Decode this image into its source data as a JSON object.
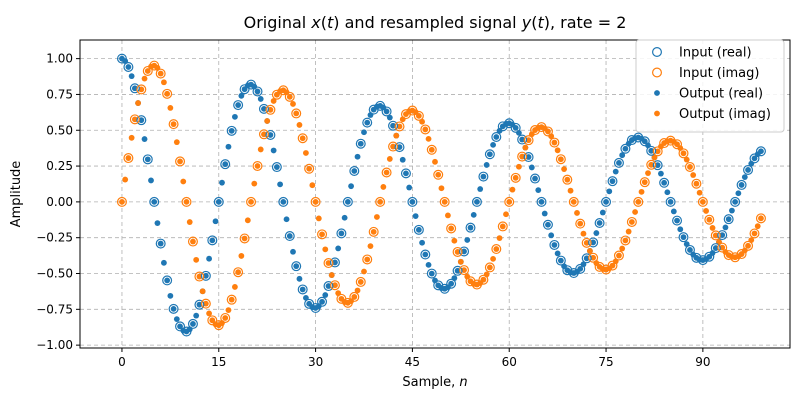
{
  "chart_data": {
    "type": "scatter",
    "title_parts": [
      "Original ",
      "x",
      "(",
      "t",
      ") and resampled signal ",
      "y",
      "(",
      "t",
      "), rate = 2"
    ],
    "xlabel_parts": [
      "Sample, ",
      "n"
    ],
    "ylabel": "Amplitude",
    "xlim": [
      -6.5,
      103.5
    ],
    "ylim": [
      -1.02,
      1.13
    ],
    "xticks": [
      0,
      15,
      30,
      45,
      60,
      75,
      90
    ],
    "xtick_labels": [
      "0",
      "15",
      "30",
      "45",
      "60",
      "75",
      "90"
    ],
    "yticks": [
      -1.0,
      -0.75,
      -0.5,
      -0.25,
      0.0,
      0.25,
      0.5,
      0.75,
      1.0
    ],
    "ytick_labels": [
      "−1.00",
      "−0.75",
      "−0.50",
      "−0.25",
      "0.00",
      "0.25",
      "0.50",
      "0.75",
      "1.00"
    ],
    "grid": true,
    "legend_position": "top-right",
    "signal": {
      "amplitude": 1.0,
      "decay": 0.01,
      "period": 20,
      "start": 0,
      "input_step": 1,
      "output_step": 0.5,
      "end": 99
    },
    "series": [
      {
        "name": "Input (real)",
        "marker": "hollow-circle",
        "color": "#1f77b4",
        "component": "real",
        "step": 1
      },
      {
        "name": "Input (imag)",
        "marker": "hollow-circle",
        "color": "#ff7f0e",
        "component": "imag",
        "step": 1
      },
      {
        "name": "Output (real)",
        "marker": "dot",
        "color": "#1f77b4",
        "component": "real",
        "step": 0.5
      },
      {
        "name": "Output (imag)",
        "marker": "dot",
        "color": "#ff7f0e",
        "component": "imag",
        "step": 0.5
      }
    ]
  }
}
